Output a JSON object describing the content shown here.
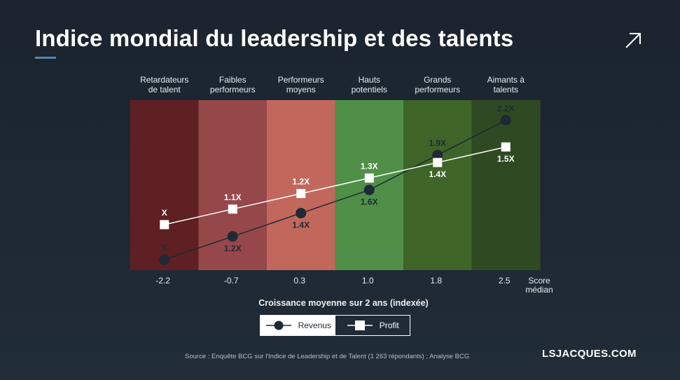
{
  "title": "Indice mondial du leadership et des talents",
  "chart_data": {
    "type": "line",
    "categories": [
      [
        "Retardateurs",
        "de talent"
      ],
      [
        "Faibles",
        "performeurs"
      ],
      [
        "Performeurs",
        "moyens"
      ],
      [
        "Hauts",
        "potentiels"
      ],
      [
        "Grands",
        "performeurs"
      ],
      [
        "Aimants à",
        "talents"
      ]
    ],
    "x": [
      "-2.2",
      "-0.7",
      "0.3",
      "1.0",
      "1.8",
      "2.5"
    ],
    "x_unit": [
      "Score",
      "médian"
    ],
    "xlabel": "Croissance moyenne sur 2 ans (indexée)",
    "band_colors": [
      "#5e2022",
      "#96474a",
      "#c2675c",
      "#4f8f47",
      "#3e6428",
      "#2f4a22"
    ],
    "series": [
      {
        "name": "Revenus",
        "values": [
          1.0,
          1.2,
          1.4,
          1.6,
          1.9,
          2.2
        ],
        "labels": [
          "X",
          "1.2X",
          "1.4X",
          "1.6X",
          "1.9X",
          "2.2X"
        ],
        "marker": "circle",
        "color": "#1e2a35"
      },
      {
        "name": "Profit",
        "values": [
          1.0,
          1.1,
          1.2,
          1.3,
          1.4,
          1.5
        ],
        "labels": [
          "X",
          "1.1X",
          "1.2X",
          "1.3X",
          "1.4X",
          "1.5X"
        ],
        "marker": "square",
        "color": "#ffffff"
      }
    ],
    "legend": "bottom"
  },
  "source": "Source : Enquête BCG sur l'Indice de Leadership et de Talent (1 263 répondants) ; Analyse BCG",
  "brand": "LSJACQUES.COM",
  "icons": {
    "share": "arrow-up-right-icon"
  }
}
